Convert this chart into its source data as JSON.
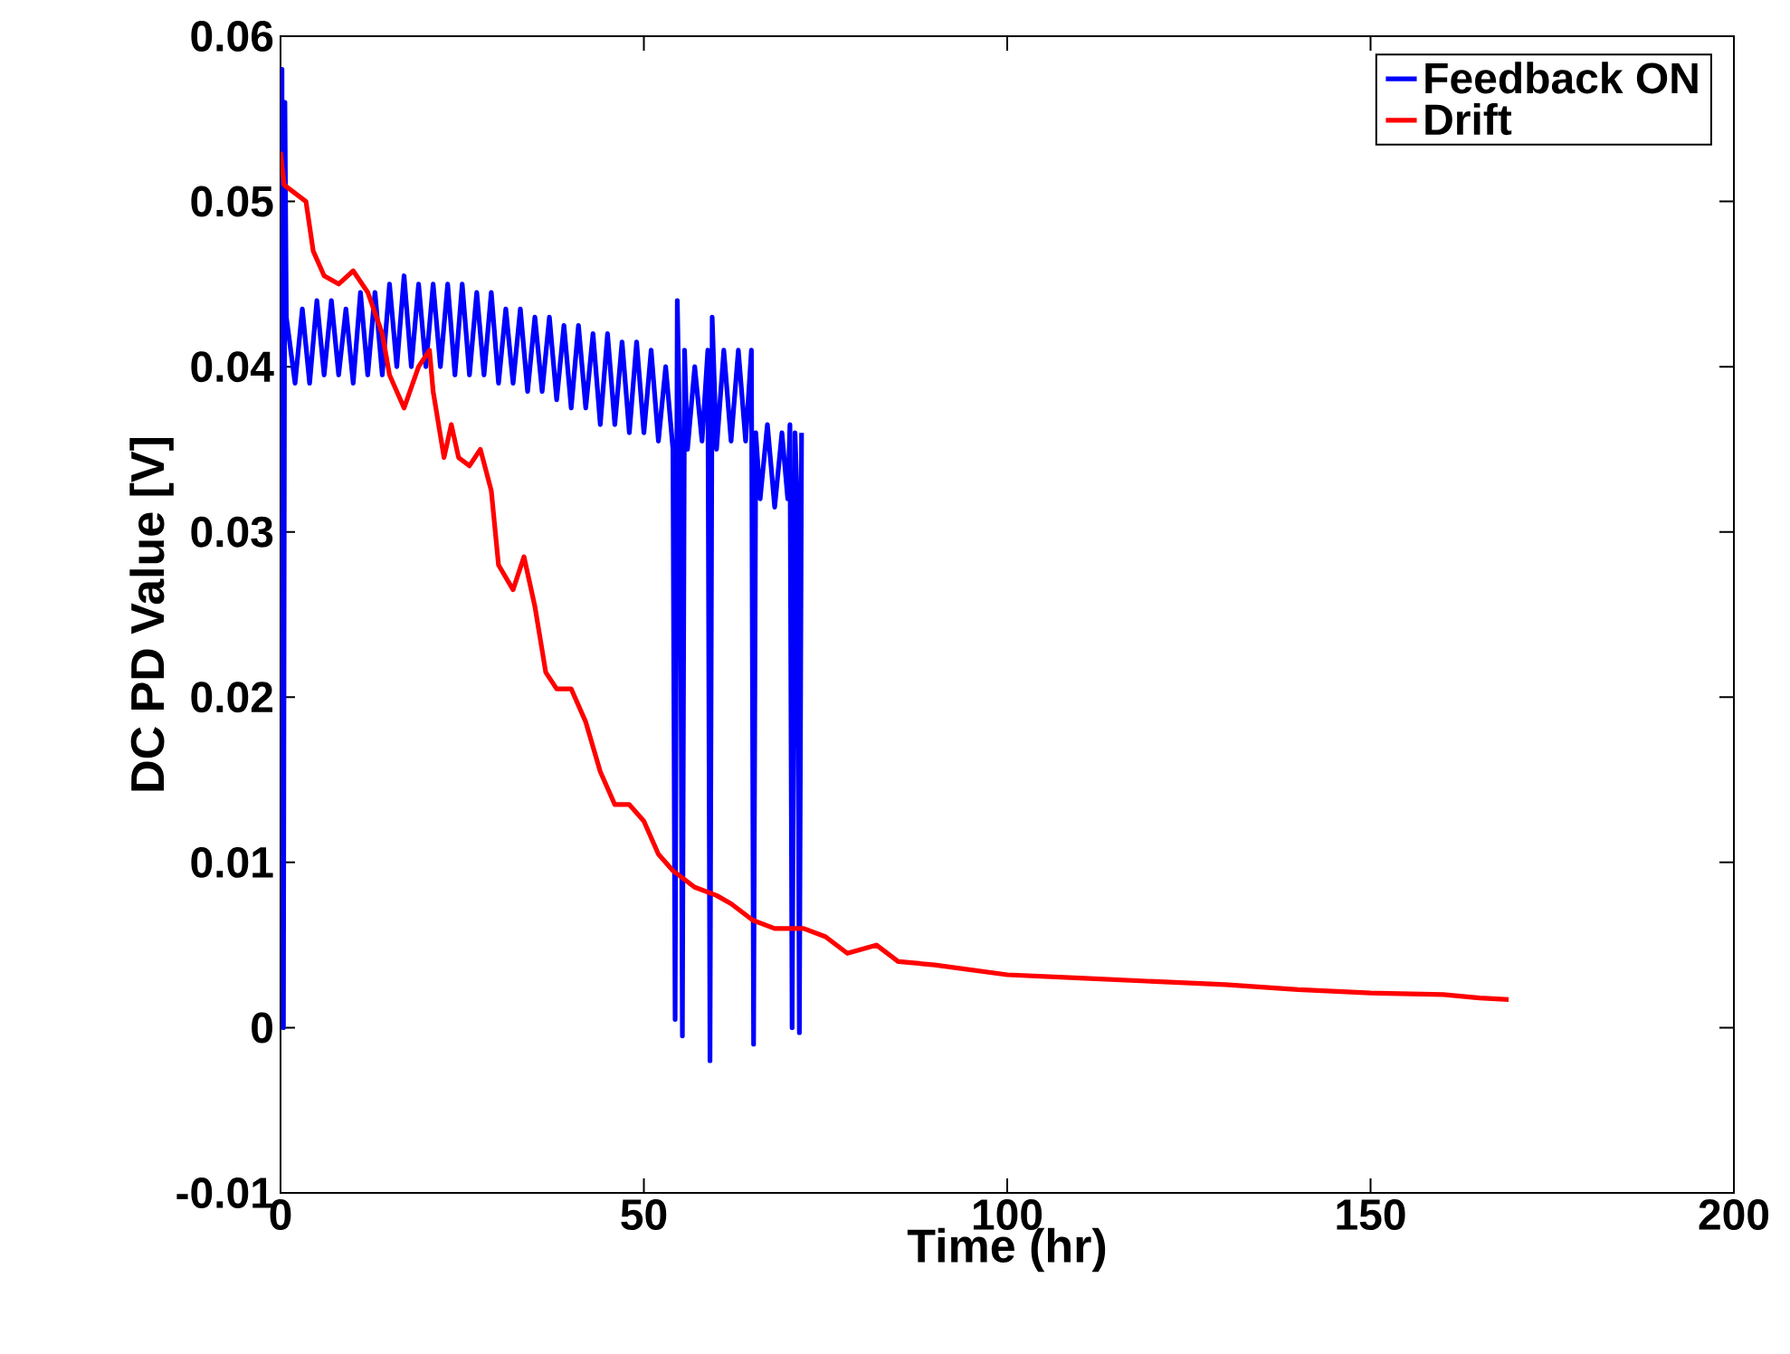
{
  "chart_data": {
    "type": "line",
    "xlabel": "Time (hr)",
    "ylabel": "DC PD Value [V]",
    "xlim": [
      0,
      200
    ],
    "ylim": [
      -0.01,
      0.06
    ],
    "xticks": [
      0,
      50,
      100,
      150,
      200
    ],
    "yticks": [
      -0.01,
      0,
      0.01,
      0.02,
      0.03,
      0.04,
      0.05,
      0.06
    ],
    "legend": "top right",
    "grid": false,
    "series": [
      {
        "name": "Feedback ON",
        "color": "#0000ff",
        "x": [
          0,
          0.2,
          0.4,
          0.6,
          0.8,
          2,
          3,
          4,
          5,
          6,
          7,
          8,
          9,
          10,
          11,
          12,
          13,
          14,
          15,
          16,
          17,
          18,
          19,
          20,
          21,
          22,
          23,
          24,
          25,
          26,
          27,
          28,
          29,
          30,
          31,
          32,
          33,
          34,
          35,
          36,
          37,
          38,
          39,
          40,
          41,
          42,
          43,
          44,
          45,
          46,
          47,
          48,
          49,
          50,
          51,
          52,
          53,
          54,
          54.3,
          54.6,
          55,
          55.3,
          55.6,
          56,
          57,
          58,
          58.8,
          59.1,
          59.4,
          60,
          61,
          62,
          63,
          64,
          64.8,
          65.1,
          65.4,
          66,
          67,
          68,
          69,
          69.8,
          70.1,
          70.4,
          70.8,
          71.1,
          71.4,
          71.7
        ],
        "values": [
          0.042,
          0.058,
          0,
          0.056,
          0.043,
          0.039,
          0.0435,
          0.039,
          0.044,
          0.0395,
          0.044,
          0.0395,
          0.0435,
          0.039,
          0.0445,
          0.0395,
          0.0445,
          0.0395,
          0.045,
          0.04,
          0.0455,
          0.04,
          0.045,
          0.04,
          0.045,
          0.04,
          0.045,
          0.0395,
          0.045,
          0.0395,
          0.0445,
          0.0395,
          0.0445,
          0.039,
          0.0435,
          0.039,
          0.0435,
          0.0385,
          0.043,
          0.0385,
          0.043,
          0.038,
          0.0425,
          0.0375,
          0.0425,
          0.0375,
          0.042,
          0.0365,
          0.042,
          0.0365,
          0.0415,
          0.036,
          0.0415,
          0.036,
          0.041,
          0.0355,
          0.04,
          0.035,
          0.0005,
          0.044,
          0.034,
          -0.0005,
          0.041,
          0.035,
          0.04,
          0.0355,
          0.041,
          -0.002,
          0.043,
          0.035,
          0.041,
          0.0355,
          0.041,
          0.0355,
          0.041,
          -0.001,
          0.036,
          0.032,
          0.0365,
          0.0315,
          0.036,
          0.032,
          0.0365,
          0,
          0.036,
          0.032,
          -0.0003,
          0.036
        ]
      },
      {
        "name": "Drift",
        "color": "#ff0000",
        "x": [
          0,
          0.5,
          2,
          3.5,
          4.5,
          6,
          8,
          10,
          12,
          14,
          15,
          17,
          19,
          20.5,
          21,
          22.5,
          23.5,
          24.5,
          26,
          27.5,
          29,
          30,
          32,
          33.5,
          35,
          36.5,
          38,
          40,
          42,
          44,
          46,
          48,
          50,
          52,
          54,
          57,
          60,
          62,
          65,
          68,
          72,
          75,
          78,
          82,
          85,
          90,
          100,
          110,
          120,
          130,
          140,
          150,
          160,
          165,
          169
        ],
        "values": [
          0.053,
          0.051,
          0.0505,
          0.05,
          0.047,
          0.0455,
          0.045,
          0.0458,
          0.0445,
          0.042,
          0.0395,
          0.0375,
          0.04,
          0.041,
          0.0385,
          0.0345,
          0.0365,
          0.0345,
          0.034,
          0.035,
          0.0325,
          0.028,
          0.0265,
          0.0285,
          0.0255,
          0.0215,
          0.0205,
          0.0205,
          0.0185,
          0.0155,
          0.0135,
          0.0135,
          0.0125,
          0.0105,
          0.0095,
          0.0085,
          0.008,
          0.0075,
          0.0065,
          0.006,
          0.006,
          0.0055,
          0.0045,
          0.005,
          0.004,
          0.0038,
          0.0032,
          0.003,
          0.0028,
          0.0026,
          0.0023,
          0.0021,
          0.002,
          0.0018,
          0.0017
        ]
      }
    ]
  }
}
